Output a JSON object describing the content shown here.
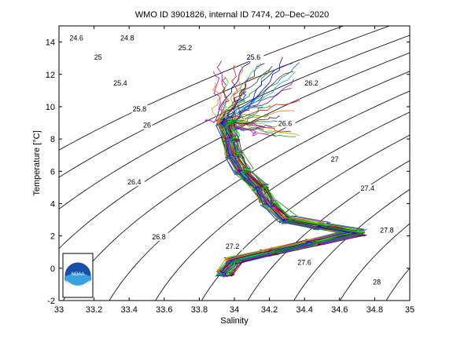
{
  "chart_data": {
    "type": "line",
    "title": "WMO ID 3901826, internal ID 7474, 20–Dec–2020",
    "xlabel": "Salinity",
    "ylabel": "Temperature [°C]",
    "xlim": [
      33,
      35
    ],
    "ylim": [
      -2,
      15
    ],
    "xticks": [
      "33",
      "33.2",
      "33.4",
      "33.6",
      "33.8",
      "34",
      "34.2",
      "34.4",
      "34.6",
      "34.8",
      "35"
    ],
    "yticks": [
      "-2",
      "0",
      "2",
      "4",
      "6",
      "8",
      "10",
      "12",
      "14"
    ],
    "grid": false,
    "logo_text": "NOAA",
    "density_contours": [
      {
        "label": "24.6",
        "x": 33.06,
        "y": 14.1
      },
      {
        "label": "24.8",
        "x": 33.35,
        "y": 14.1
      },
      {
        "label": "25",
        "x": 33.2,
        "y": 12.9
      },
      {
        "label": "25.2",
        "x": 33.68,
        "y": 13.5
      },
      {
        "label": "25.4",
        "x": 33.31,
        "y": 11.3
      },
      {
        "label": "25.6",
        "x": 34.07,
        "y": 12.9
      },
      {
        "label": "25.8",
        "x": 33.42,
        "y": 9.7
      },
      {
        "label": "26",
        "x": 33.48,
        "y": 8.7
      },
      {
        "label": "26.2",
        "x": 34.4,
        "y": 11.3
      },
      {
        "label": "26.4",
        "x": 33.39,
        "y": 5.2
      },
      {
        "label": "26.6",
        "x": 34.25,
        "y": 8.8
      },
      {
        "label": "26.8",
        "x": 33.53,
        "y": 1.8
      },
      {
        "label": "27",
        "x": 34.55,
        "y": 6.6
      },
      {
        "label": "27.2",
        "x": 33.95,
        "y": 1.2
      },
      {
        "label": "27.4",
        "x": 34.72,
        "y": 4.8
      },
      {
        "label": "27.6",
        "x": 34.36,
        "y": 0.2
      },
      {
        "label": "27.8",
        "x": 34.83,
        "y": 2.2
      },
      {
        "label": "28",
        "x": 34.79,
        "y": -1.0
      }
    ],
    "profile_spine": [
      {
        "x": 33.95,
        "y": 9.0
      },
      {
        "x": 33.98,
        "y": 8.0
      },
      {
        "x": 34.0,
        "y": 7.0
      },
      {
        "x": 34.05,
        "y": 6.0
      },
      {
        "x": 34.15,
        "y": 5.0
      },
      {
        "x": 34.2,
        "y": 4.0
      },
      {
        "x": 34.3,
        "y": 3.0
      },
      {
        "x": 34.5,
        "y": 2.6
      },
      {
        "x": 34.7,
        "y": 2.2
      },
      {
        "x": 34.45,
        "y": 1.6
      },
      {
        "x": 34.2,
        "y": 1.0
      },
      {
        "x": 34.0,
        "y": 0.5
      },
      {
        "x": 33.95,
        "y": -0.3
      }
    ],
    "series_count": 50,
    "series_colors": [
      "#0000ff",
      "#00a000",
      "#ff0000",
      "#00c0c0",
      "#c000c0",
      "#b0b000",
      "#404040",
      "#ff8000",
      "#8000ff",
      "#008080",
      "#800000",
      "#00ff00"
    ]
  }
}
